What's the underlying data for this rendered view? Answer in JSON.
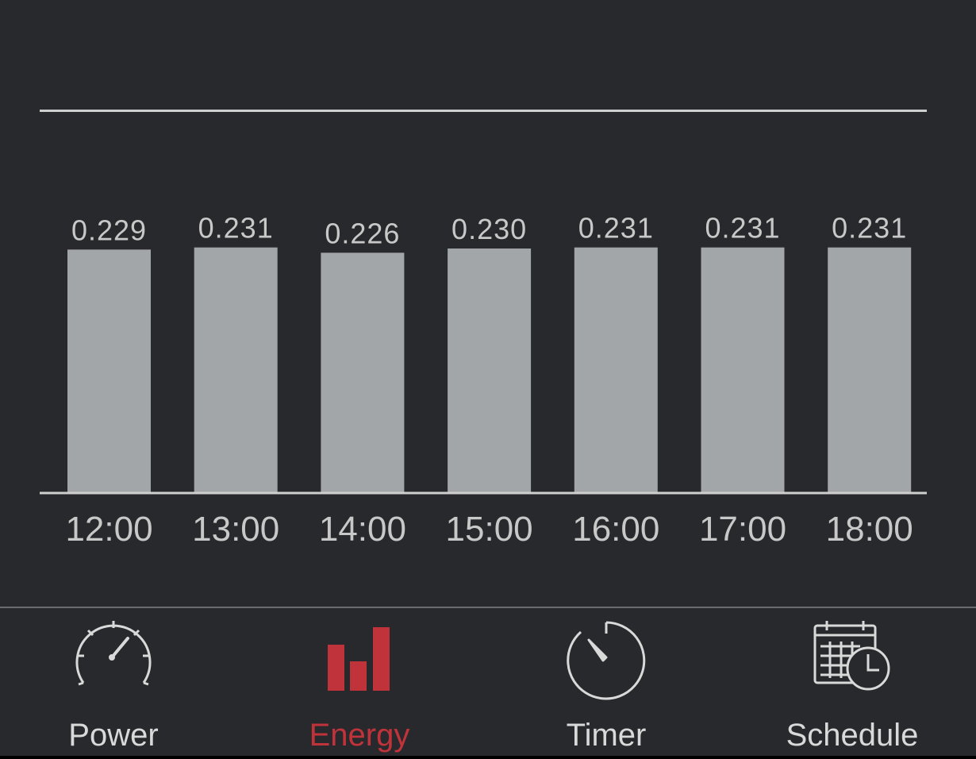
{
  "chart_data": {
    "type": "bar",
    "categories": [
      "12:00",
      "13:00",
      "14:00",
      "15:00",
      "16:00",
      "17:00",
      "18:00"
    ],
    "values": [
      0.229,
      0.231,
      0.226,
      0.23,
      0.231,
      0.231,
      0.231
    ],
    "data_labels": [
      "0.229",
      "0.231",
      "0.226",
      "0.230",
      "0.231",
      "0.231",
      "0.231"
    ],
    "ylim": [
      0,
      0.36
    ],
    "bar_color": "#a3a6a8",
    "grid": false
  },
  "tabs": [
    {
      "label": "Power",
      "icon": "speedometer-icon",
      "active": false
    },
    {
      "label": "Energy",
      "icon": "bar-chart-icon",
      "active": true
    },
    {
      "label": "Timer",
      "icon": "timer-icon",
      "active": false
    },
    {
      "label": "Schedule",
      "icon": "calendar-clock-icon",
      "active": false
    }
  ],
  "colors": {
    "background": "#28292c",
    "active": "#c0333a",
    "inactive": "#d9d9d9"
  }
}
